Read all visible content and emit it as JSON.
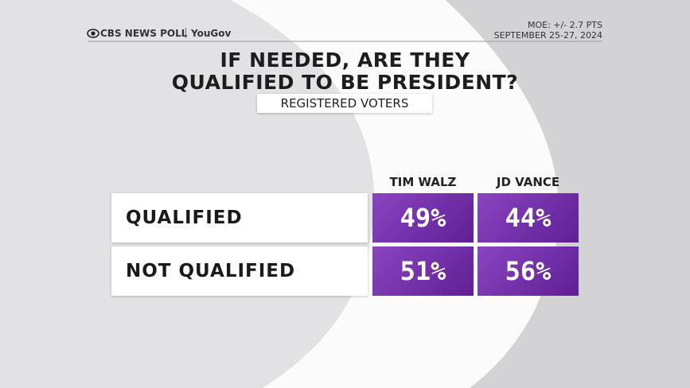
{
  "header": {
    "brand": "CBS NEWS POLL",
    "partner": "YouGov",
    "moe": "MOE: +/- 2.7 PTS",
    "dates": "SEPTEMBER 25-27, 2024"
  },
  "title": [
    "IF NEEDED, ARE THEY",
    "QUALIFIED TO BE PRESIDENT?"
  ],
  "subtitle": "REGISTERED VOTERS",
  "table": {
    "columns": [
      "TIM WALZ",
      "JD VANCE"
    ],
    "rows": [
      [
        "QUALIFIED",
        "49%",
        "44%"
      ],
      [
        "NOT QUALIFIED",
        "51%",
        "56%"
      ]
    ]
  }
}
